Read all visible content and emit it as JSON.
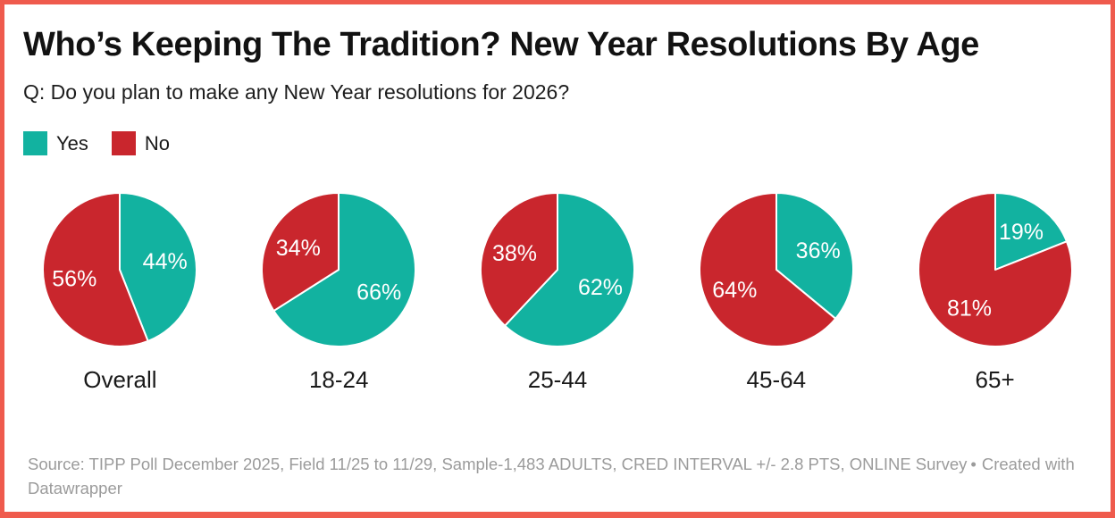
{
  "frame": {
    "border_color": "#EF5B4D",
    "background": "#FFFFFF"
  },
  "header": {
    "title": "Who’s Keeping The Tradition? New Year Resolutions By Age",
    "subtitle": "Q: Do you plan to make any New Year resolutions for 2026?"
  },
  "legend": {
    "position": "top-left",
    "items": [
      {
        "label": "Yes",
        "color": "#12B2A0"
      },
      {
        "label": "No",
        "color": "#C9262D"
      }
    ]
  },
  "chart_data": {
    "type": "pie",
    "unit": "%",
    "series": [
      "Yes",
      "No"
    ],
    "colors": {
      "Yes": "#12B2A0",
      "No": "#C9262D"
    },
    "slice_label_color": "#FFFFFF",
    "start_angle_deg": 0,
    "direction": "clockwise",
    "pies": [
      {
        "category": "Overall",
        "values": {
          "Yes": 44,
          "No": 56
        }
      },
      {
        "category": "18-24",
        "values": {
          "Yes": 66,
          "No": 34
        }
      },
      {
        "category": "25-44",
        "values": {
          "Yes": 62,
          "No": 38
        }
      },
      {
        "category": "45-64",
        "values": {
          "Yes": 36,
          "No": 64
        }
      },
      {
        "category": "65+",
        "values": {
          "Yes": 19,
          "No": 81
        }
      }
    ]
  },
  "footer": {
    "source": "Source: TIPP Poll December 2025, Field 11/25 to 11/29, Sample-1,483 ADULTS, CRED INTERVAL +/- 2.8 PTS, ONLINE Survey",
    "separator": "•",
    "attribution": "Created with Datawrapper"
  }
}
